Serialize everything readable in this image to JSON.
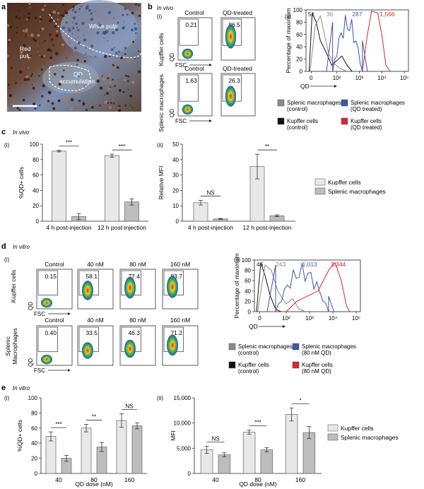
{
  "panel_letters": [
    "a",
    "b",
    "c",
    "d",
    "e"
  ],
  "panel_a": {
    "labels": {
      "white_pulp": "White pulp",
      "red_pulp_line1": "Red",
      "red_pulp_line2": "pulp",
      "qd_line1": "QD",
      "qd_line2": "accumulation"
    }
  },
  "panel_b": {
    "condition": "In vivo",
    "sub_i": "(i)",
    "sub_ii": "(ii)",
    "col_control": "Control",
    "col_treated": "QD-treated",
    "row_kupffer": "Kupffer cells",
    "row_splenic": "Splenic macrophages",
    "y_axis": "QD",
    "x_axis": "FSC",
    "kupffer_values": [
      "0.21",
      "86.5"
    ],
    "splenic_values": [
      "1.63",
      "26.3"
    ],
    "histogram": {
      "ylabel": "Percentage of maximum",
      "xlabel": "QD",
      "yticks": [
        "0",
        "20",
        "40",
        "60",
        "80",
        "100"
      ],
      "xticks": [
        "0",
        "10²",
        "10³",
        "10⁴",
        "10⁵"
      ],
      "mfi_labels": [
        "51",
        "36",
        "287",
        "1,566"
      ]
    },
    "legend": [
      {
        "label": "Splenic macrophages (control)",
        "color": "#8a8a8a"
      },
      {
        "label": "Splenic macrophages (QD treated)",
        "color": "#3c55a8"
      },
      {
        "label": "Kupffer cells (control)",
        "color": "#111111"
      },
      {
        "label": "Kupffer cells (QD treated)",
        "color": "#d8262c"
      }
    ]
  },
  "panel_c": {
    "condition": "In vivo",
    "sub_i": "(i)",
    "sub_ii": "(ii)",
    "legend": [
      {
        "label": "Kupffer cells",
        "color": "#e8e8e8"
      },
      {
        "label": "Splenic macrophages",
        "color": "#bdbdbd"
      }
    ],
    "sig_i": [
      "***",
      "***"
    ],
    "sig_ii": [
      "NS",
      "**"
    ]
  },
  "panel_d": {
    "condition": "In vitro",
    "sub_i": "(i)",
    "sub_ii": "(ii)",
    "columns": [
      "Control",
      "40 nM",
      "80 nM",
      "160 nM"
    ],
    "row_kupffer": "Kupffer cells",
    "row_splenic_line1": "Splenic",
    "row_splenic_line2": "Macrophages",
    "y_axis": "QD",
    "x_axis": "FSC",
    "kupffer_values": [
      "0.15",
      "58.1",
      "77.4",
      "83.7"
    ],
    "splenic_values": [
      "0.40",
      "33.5",
      "46.3",
      "71.2"
    ],
    "histogram": {
      "ylabel": "Percentage of maximum",
      "xlabel": "QD",
      "yticks": [
        "0",
        "20",
        "40",
        "60",
        "80",
        "100"
      ],
      "xticks": [
        "0",
        "10²",
        "10³",
        "10⁴",
        "10⁵"
      ],
      "mfi_labels": [
        "46",
        "243",
        "1,013",
        "3,344"
      ]
    },
    "legend": [
      {
        "label": "Splenic macrophages (control)",
        "color": "#8a8a8a"
      },
      {
        "label": "Splenic macrophages (80 nM QD)",
        "color": "#3c55a8"
      },
      {
        "label": "Kupffer cells (control)",
        "color": "#111111"
      },
      {
        "label": "Kupffer cells (80 nM QD)",
        "color": "#d8262c"
      }
    ]
  },
  "panel_e": {
    "condition": "In vitro",
    "sub_i": "(i)",
    "sub_ii": "(ii)",
    "legend": [
      {
        "label": "Kupffer cells",
        "color": "#e8e8e8"
      },
      {
        "label": "Splenic macrophages",
        "color": "#bdbdbd"
      }
    ],
    "sig_i": [
      "***",
      "**",
      "NS"
    ],
    "sig_ii": [
      "NS",
      "***",
      "*"
    ]
  },
  "chart_data": [
    {
      "id": "c_i",
      "type": "bar",
      "title": "",
      "ylabel": "%QD+ cells",
      "xlabel": "",
      "categories": [
        "4 h post-injection",
        "12 h post-injection"
      ],
      "ylim": [
        0,
        100
      ],
      "yticks": [
        0,
        20,
        40,
        60,
        80,
        100
      ],
      "series": [
        {
          "name": "Kupffer cells",
          "values": [
            91,
            85
          ],
          "errors": [
            1,
            2
          ]
        },
        {
          "name": "Splenic macrophages",
          "values": [
            6,
            25
          ],
          "errors": [
            4,
            4
          ]
        }
      ]
    },
    {
      "id": "c_ii",
      "type": "bar",
      "title": "",
      "ylabel": "Relative MFI",
      "xlabel": "",
      "categories": [
        "4 h post-injection",
        "12 h post-injection"
      ],
      "ylim": [
        0,
        50
      ],
      "yticks": [
        0,
        10,
        20,
        30,
        40,
        50
      ],
      "series": [
        {
          "name": "Kupffer cells",
          "values": [
            12,
            35.5
          ],
          "errors": [
            1.5,
            8
          ]
        },
        {
          "name": "Splenic macrophages",
          "values": [
            1.5,
            3.5
          ],
          "errors": [
            0.3,
            0.6
          ]
        }
      ]
    },
    {
      "id": "e_i",
      "type": "bar",
      "title": "",
      "ylabel": "%QD+ cells",
      "xlabel": "QD dose (nM)",
      "categories": [
        "40",
        "80",
        "160"
      ],
      "ylim": [
        0,
        100
      ],
      "yticks": [
        0,
        20,
        40,
        60,
        80,
        100
      ],
      "series": [
        {
          "name": "Kupffer cells",
          "values": [
            49,
            60,
            70
          ],
          "errors": [
            6,
            5,
            9
          ]
        },
        {
          "name": "Splenic macrophages",
          "values": [
            20,
            35,
            63
          ],
          "errors": [
            4,
            6,
            4
          ]
        }
      ]
    },
    {
      "id": "e_ii",
      "type": "bar",
      "title": "",
      "ylabel": "MFI",
      "xlabel": "QD dose (nM)",
      "categories": [
        "40",
        "80",
        "160"
      ],
      "ylim": [
        0,
        15000
      ],
      "yticks": [
        0,
        5000,
        10000,
        15000
      ],
      "ytick_labels": [
        "0",
        "5,000",
        "10,000",
        "15,000"
      ],
      "series": [
        {
          "name": "Kupffer cells",
          "values": [
            4700,
            8200,
            11700
          ],
          "errors": [
            700,
            400,
            1300
          ]
        },
        {
          "name": "Splenic macrophages",
          "values": [
            3700,
            4700,
            8100
          ],
          "errors": [
            400,
            400,
            1200
          ]
        }
      ]
    }
  ]
}
